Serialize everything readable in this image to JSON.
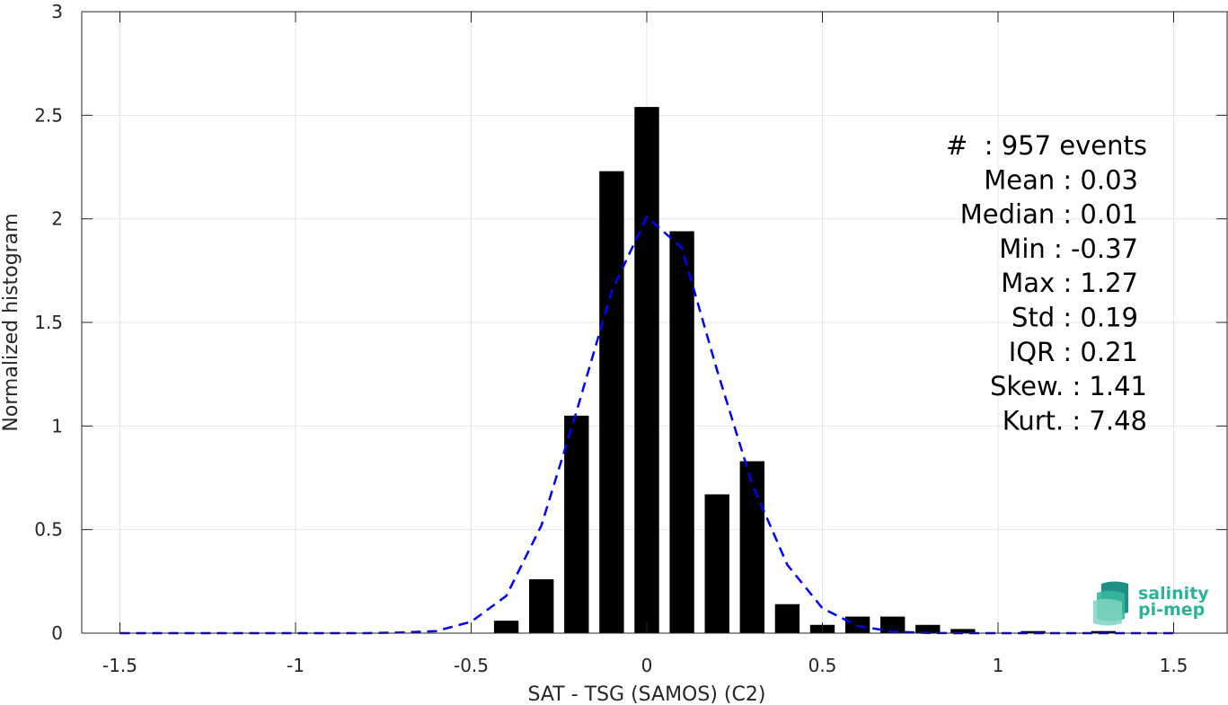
{
  "chart_data": {
    "type": "bar",
    "xlabel": "SAT - TSG (SAMOS) (C2)",
    "ylabel": "Normalized histogram",
    "xlim": [
      -1.6,
      1.6
    ],
    "ylim": [
      0,
      3
    ],
    "grid": true,
    "xticks": [
      -1.5,
      -1,
      -0.5,
      0,
      0.5,
      1,
      1.5
    ],
    "xtick_labels": [
      "-1.5",
      "-1",
      "-0.5",
      "0",
      "0.5",
      "1",
      "1.5"
    ],
    "yticks": [
      0,
      0.5,
      1,
      1.5,
      2,
      2.5,
      3
    ],
    "ytick_labels": [
      "0",
      "0.5",
      "1",
      "1.5",
      "2",
      "2.5",
      "3"
    ],
    "bar_width": 0.07,
    "bars": {
      "x": [
        -0.4,
        -0.3,
        -0.2,
        -0.1,
        0,
        0.1,
        0.2,
        0.3,
        0.4,
        0.5,
        0.6,
        0.7,
        0.8,
        0.9,
        1.0,
        1.1,
        1.2,
        1.3
      ],
      "values": [
        0.06,
        0.26,
        1.05,
        2.23,
        2.54,
        1.94,
        0.67,
        0.83,
        0.14,
        0.04,
        0.08,
        0.08,
        0.04,
        0.02,
        0.0,
        0.01,
        0.0,
        0.01
      ],
      "color": "#000000"
    },
    "fit_line": {
      "style": "dashed",
      "color": "#0000ff",
      "x": [
        -1.5,
        -1.4,
        -1.3,
        -1.2,
        -1.1,
        -1.0,
        -0.9,
        -0.8,
        -0.7,
        -0.6,
        -0.5,
        -0.4,
        -0.3,
        -0.2,
        -0.1,
        0,
        0.1,
        0.2,
        0.3,
        0.4,
        0.5,
        0.6,
        0.7,
        0.8,
        0.9,
        1.0,
        1.1,
        1.2,
        1.3,
        1.4,
        1.5
      ],
      "y": [
        0,
        0,
        0,
        0,
        0,
        0,
        0,
        0,
        0.003,
        0.01,
        0.055,
        0.18,
        0.52,
        1.07,
        1.65,
        2.01,
        1.86,
        1.27,
        0.72,
        0.33,
        0.12,
        0.035,
        0.008,
        0.001,
        0,
        0,
        0,
        0,
        0,
        0,
        0
      ]
    },
    "annotations": [
      "#  : 957 events",
      "Mean : 0.03",
      "Median : 0.01",
      "Min : -0.37",
      "Max : 1.27",
      "Std : 0.19",
      "IQR : 0.21",
      "Skew. : 1.41",
      "Kurt. : 7.48"
    ]
  },
  "logo": {
    "line1": "salinity",
    "line2": "pi-mep",
    "color": "#2bb39a"
  }
}
